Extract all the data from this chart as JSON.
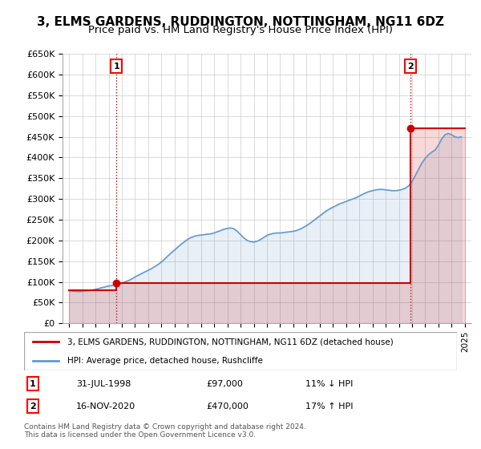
{
  "title": "3, ELMS GARDENS, RUDDINGTON, NOTTINGHAM, NG11 6DZ",
  "subtitle": "Price paid vs. HM Land Registry's House Price Index (HPI)",
  "legend_line1": "3, ELMS GARDENS, RUDDINGTON, NOTTINGHAM, NG11 6DZ (detached house)",
  "legend_line2": "HPI: Average price, detached house, Rushcliffe",
  "footnote1": "Contains HM Land Registry data © Crown copyright and database right 2024.",
  "footnote2": "This data is licensed under the Open Government Licence v3.0.",
  "annotation1_label": "1",
  "annotation1_date": "31-JUL-1998",
  "annotation1_price": "£97,000",
  "annotation1_hpi": "11% ↓ HPI",
  "annotation2_label": "2",
  "annotation2_date": "16-NOV-2020",
  "annotation2_price": "£470,000",
  "annotation2_hpi": "17% ↑ HPI",
  "sale1_x": 1998.58,
  "sale1_y": 97000,
  "sale2_x": 2020.88,
  "sale2_y": 470000,
  "ylim": [
    0,
    650000
  ],
  "xlim": [
    1994.5,
    2025.5
  ],
  "yticks": [
    0,
    50000,
    100000,
    150000,
    200000,
    250000,
    300000,
    350000,
    400000,
    450000,
    500000,
    550000,
    600000,
    650000
  ],
  "xticks": [
    1995,
    1996,
    1997,
    1998,
    1999,
    2000,
    2001,
    2002,
    2003,
    2004,
    2005,
    2006,
    2007,
    2008,
    2009,
    2010,
    2011,
    2012,
    2013,
    2014,
    2015,
    2016,
    2017,
    2018,
    2019,
    2020,
    2021,
    2022,
    2023,
    2024,
    2025
  ],
  "hpi_x": [
    1995,
    1995.25,
    1995.5,
    1995.75,
    1996,
    1996.25,
    1996.5,
    1996.75,
    1997,
    1997.25,
    1997.5,
    1997.75,
    1998,
    1998.25,
    1998.5,
    1998.75,
    1999,
    1999.25,
    1999.5,
    1999.75,
    2000,
    2000.25,
    2000.5,
    2000.75,
    2001,
    2001.25,
    2001.5,
    2001.75,
    2002,
    2002.25,
    2002.5,
    2002.75,
    2003,
    2003.25,
    2003.5,
    2003.75,
    2004,
    2004.25,
    2004.5,
    2004.75,
    2005,
    2005.25,
    2005.5,
    2005.75,
    2006,
    2006.25,
    2006.5,
    2006.75,
    2007,
    2007.25,
    2007.5,
    2007.75,
    2008,
    2008.25,
    2008.5,
    2008.75,
    2009,
    2009.25,
    2009.5,
    2009.75,
    2010,
    2010.25,
    2010.5,
    2010.75,
    2011,
    2011.25,
    2011.5,
    2011.75,
    2012,
    2012.25,
    2012.5,
    2012.75,
    2013,
    2013.25,
    2013.5,
    2013.75,
    2014,
    2014.25,
    2014.5,
    2014.75,
    2015,
    2015.25,
    2015.5,
    2015.75,
    2016,
    2016.25,
    2016.5,
    2016.75,
    2017,
    2017.25,
    2017.5,
    2017.75,
    2018,
    2018.25,
    2018.5,
    2018.75,
    2019,
    2019.25,
    2019.5,
    2019.75,
    2020,
    2020.25,
    2020.5,
    2020.75,
    2021,
    2021.25,
    2021.5,
    2021.75,
    2022,
    2022.25,
    2022.5,
    2022.75,
    2023,
    2023.25,
    2023.5,
    2023.75,
    2024,
    2024.25,
    2024.5,
    2024.75
  ],
  "hpi_y": [
    78000,
    77500,
    77000,
    76500,
    77000,
    78000,
    79000,
    80000,
    82000,
    84000,
    86000,
    88000,
    90000,
    91000,
    93000,
    94000,
    97000,
    100000,
    103000,
    107000,
    112000,
    116000,
    120000,
    124000,
    128000,
    132000,
    137000,
    142000,
    148000,
    155000,
    163000,
    170000,
    177000,
    184000,
    191000,
    197000,
    203000,
    207000,
    210000,
    212000,
    213000,
    214000,
    215000,
    216000,
    218000,
    221000,
    224000,
    227000,
    229000,
    230000,
    228000,
    222000,
    214000,
    206000,
    200000,
    197000,
    196000,
    198000,
    202000,
    207000,
    212000,
    215000,
    217000,
    218000,
    218000,
    219000,
    220000,
    221000,
    222000,
    224000,
    227000,
    231000,
    236000,
    241000,
    247000,
    253000,
    259000,
    265000,
    271000,
    276000,
    280000,
    284000,
    288000,
    291000,
    294000,
    297000,
    300000,
    303000,
    307000,
    311000,
    315000,
    318000,
    320000,
    322000,
    323000,
    323000,
    322000,
    321000,
    320000,
    320000,
    321000,
    323000,
    326000,
    332000,
    342000,
    357000,
    372000,
    387000,
    398000,
    407000,
    413000,
    418000,
    430000,
    445000,
    455000,
    458000,
    455000,
    450000,
    448000,
    450000
  ],
  "price_x": [
    1995,
    1998.58,
    1998.58,
    2020.88,
    2020.88,
    2025
  ],
  "price_y": [
    80000,
    80000,
    97000,
    97000,
    470000,
    470000
  ],
  "red_color": "#cc0000",
  "blue_color": "#6699cc",
  "background_color": "#ffffff",
  "grid_color": "#cccccc",
  "title_fontsize": 11,
  "subtitle_fontsize": 9.5
}
